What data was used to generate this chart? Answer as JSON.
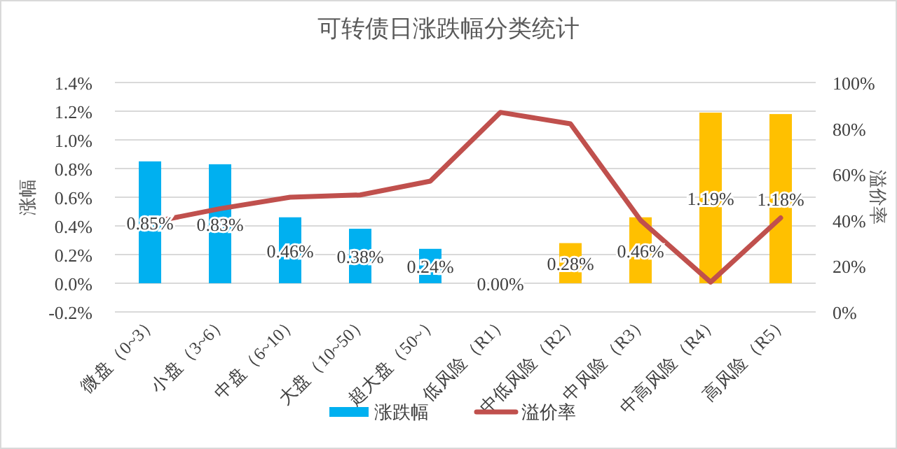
{
  "chart_data": {
    "type": "bar",
    "title": "可转债日涨跌幅分类统计",
    "ylabel": "涨幅",
    "y2label": "溢价率",
    "categories": [
      "微盘（0~3）",
      "小盘（3~6）",
      "中盘（6~10）",
      "大盘（10~50）",
      "超大盘（50~）",
      "低风险（R1）",
      "中低风险（R2）",
      "中风险（R3）",
      "中高风险（R4）",
      "高风险（R5）"
    ],
    "series": [
      {
        "name": "涨跌幅",
        "color": "#00b0f0",
        "colors": [
          "#00b0f0",
          "#00b0f0",
          "#00b0f0",
          "#00b0f0",
          "#00b0f0",
          "#ffc000",
          "#ffc000",
          "#ffc000",
          "#ffc000",
          "#ffc000"
        ],
        "values": [
          0.85,
          0.83,
          0.46,
          0.38,
          0.24,
          0.0,
          0.28,
          0.46,
          1.19,
          1.18
        ],
        "value_labels": [
          "0.85%",
          "0.83%",
          "0.46%",
          "0.38%",
          "0.24%",
          "0.00%",
          "0.28%",
          "0.46%",
          "1.19%",
          "1.18%"
        ]
      },
      {
        "name": "溢价率",
        "type": "line",
        "axis": "y2",
        "color": "#c0504d",
        "values": [
          39,
          45,
          50,
          51,
          57,
          87,
          82,
          40,
          13,
          41
        ]
      }
    ],
    "ylim": [
      -0.2,
      1.4
    ],
    "yticks": [
      {
        "value": -0.2,
        "label": "-0.2%"
      },
      {
        "value": 0,
        "label": "0.0%"
      },
      {
        "value": 0.2,
        "label": "0.2%"
      },
      {
        "value": 0.4,
        "label": "0.4%"
      },
      {
        "value": 0.6,
        "label": "0.6%"
      },
      {
        "value": 0.8,
        "label": "0.8%"
      },
      {
        "value": 1.0,
        "label": "1.0%"
      },
      {
        "value": 1.2,
        "label": "1.2%"
      },
      {
        "value": 1.4,
        "label": "1.4%"
      }
    ],
    "y2lim": [
      0,
      100
    ],
    "y2ticks": [
      {
        "value": 0,
        "label": "0%"
      },
      {
        "value": 20,
        "label": "20%"
      },
      {
        "value": 40,
        "label": "40%"
      },
      {
        "value": 60,
        "label": "60%"
      },
      {
        "value": 80,
        "label": "80%"
      },
      {
        "value": 100,
        "label": "100%"
      }
    ],
    "grid": "y",
    "legend": "bottom",
    "marker": "none",
    "line_style": "solid"
  }
}
